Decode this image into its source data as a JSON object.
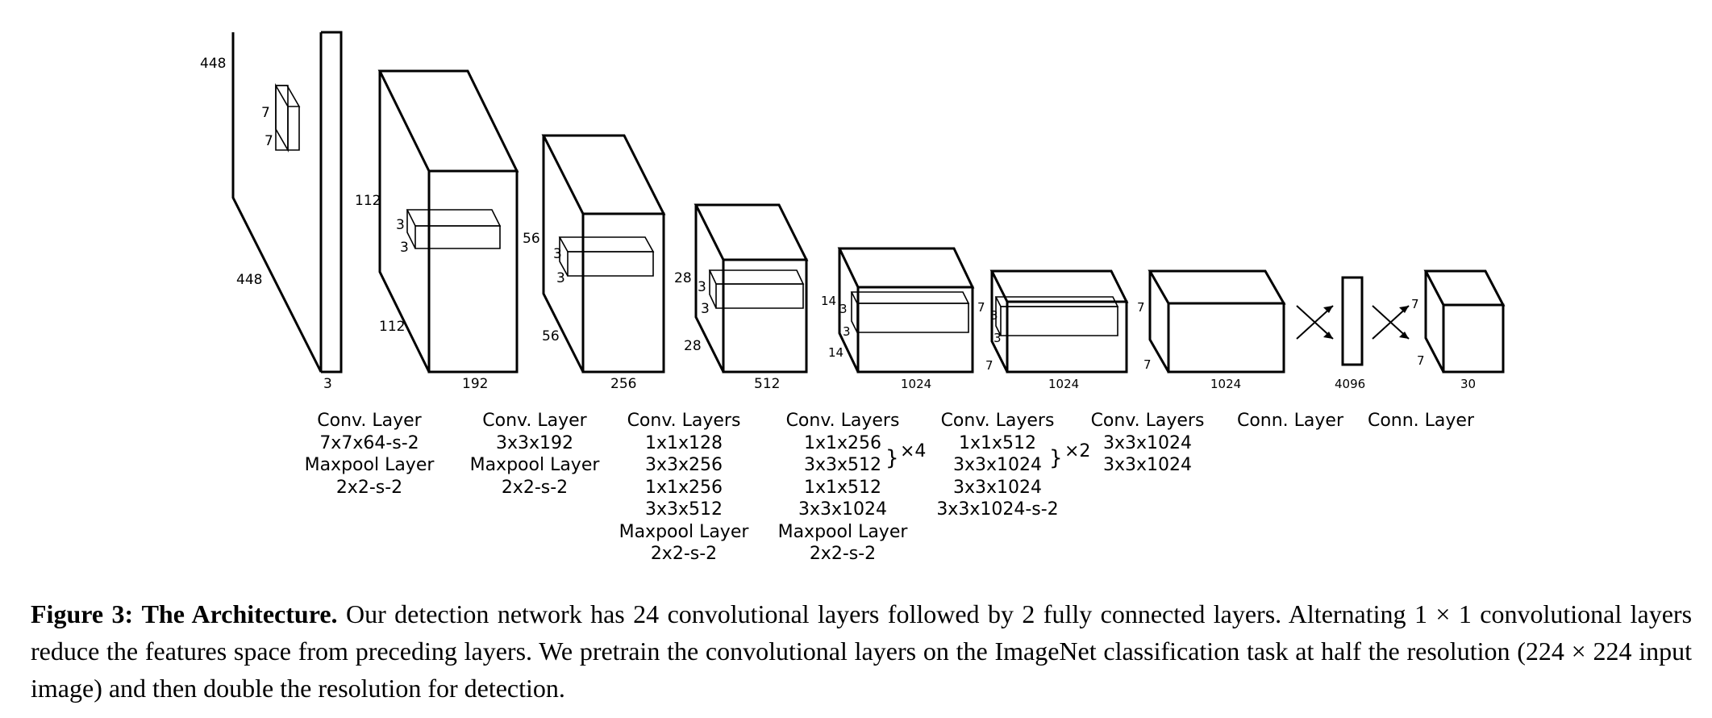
{
  "layers": [
    {
      "dims": [
        "448",
        "448",
        "3"
      ],
      "kernel": [
        "7",
        "7"
      ],
      "label": [
        "Conv. Layer",
        "7x7x64-s-2",
        "Maxpool Layer",
        "2x2-s-2"
      ]
    },
    {
      "dims": [
        "112",
        "112",
        "192"
      ],
      "kernel": [
        "3",
        "3"
      ],
      "label": [
        "Conv. Layer",
        "3x3x192",
        "Maxpool Layer",
        "2x2-s-2"
      ]
    },
    {
      "dims": [
        "56",
        "56",
        "256"
      ],
      "kernel": [
        "3",
        "3"
      ],
      "label": [
        "Conv. Layers",
        "1x1x128",
        "3x3x256",
        "1x1x256",
        "3x3x512",
        "Maxpool Layer",
        "2x2-s-2"
      ]
    },
    {
      "dims": [
        "28",
        "28",
        "512"
      ],
      "kernel": [
        "3",
        "3"
      ],
      "label": [
        "Conv. Layers",
        "1x1x256",
        "3x3x512",
        "1x1x512",
        "3x3x1024",
        "Maxpool Layer",
        "2x2-s-2"
      ],
      "repeat": "×4"
    },
    {
      "dims": [
        "14",
        "14",
        "1024"
      ],
      "kernel": [
        "3",
        "3"
      ],
      "label": [
        "Conv. Layers",
        "1x1x512",
        "3x3x1024",
        "3x3x1024",
        "3x3x1024-s-2"
      ],
      "repeat": "×2"
    },
    {
      "dims": [
        "7",
        "7",
        "1024"
      ],
      "kernel": [
        "3",
        "3"
      ],
      "label": [
        "Conv. Layers",
        "3x3x1024",
        "3x3x1024"
      ]
    },
    {
      "dims": [
        "7",
        "7",
        "1024"
      ],
      "label": [
        "Conn. Layer"
      ]
    },
    {
      "dims": [
        "4096"
      ],
      "label": [
        "Conn. Layer"
      ]
    },
    {
      "dims": [
        "7",
        "7",
        "30"
      ]
    }
  ],
  "caption": {
    "label": "Figure 3:",
    "title": "The Architecture.",
    "text": "Our detection network has 24 convolutional layers followed by 2 fully connected layers. Alternating 1 × 1 convolutional layers reduce the features space from preceding layers. We pretrain the convolutional layers on the ImageNet classification task at half the resolution (224 × 224 input image) and then double the resolution for detection."
  }
}
